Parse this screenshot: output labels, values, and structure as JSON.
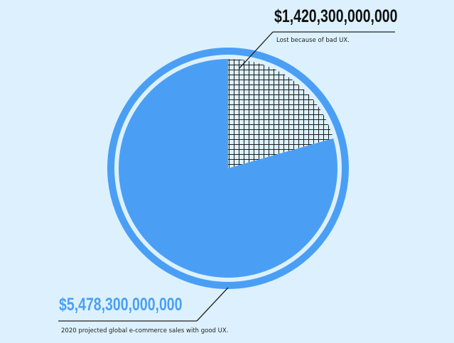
{
  "colors": {
    "background": "#dcf1fd",
    "main_slice": "#4a9ff5",
    "ring": "#4a9ff5",
    "hatch_slice_bg": "#dcf1fd",
    "hatch_lines": "#1a1a1a",
    "annotation_line": "#222222"
  },
  "chart_data": {
    "type": "pie",
    "title": "",
    "slices": [
      {
        "label": "Lost because of bad UX.",
        "value": 1420300000000,
        "value_label": "$1,420,300,000,000",
        "fill": "hatch"
      },
      {
        "label": "2020 projected global e-commerce sales with good UX.",
        "value": 5478300000000,
        "value_label": "$5,478,300,000,000",
        "fill": "solid"
      }
    ],
    "start": "12 o'clock",
    "direction": "clockwise",
    "legend": "none",
    "annotations": "leader lines to labels top-right and bottom-left"
  }
}
